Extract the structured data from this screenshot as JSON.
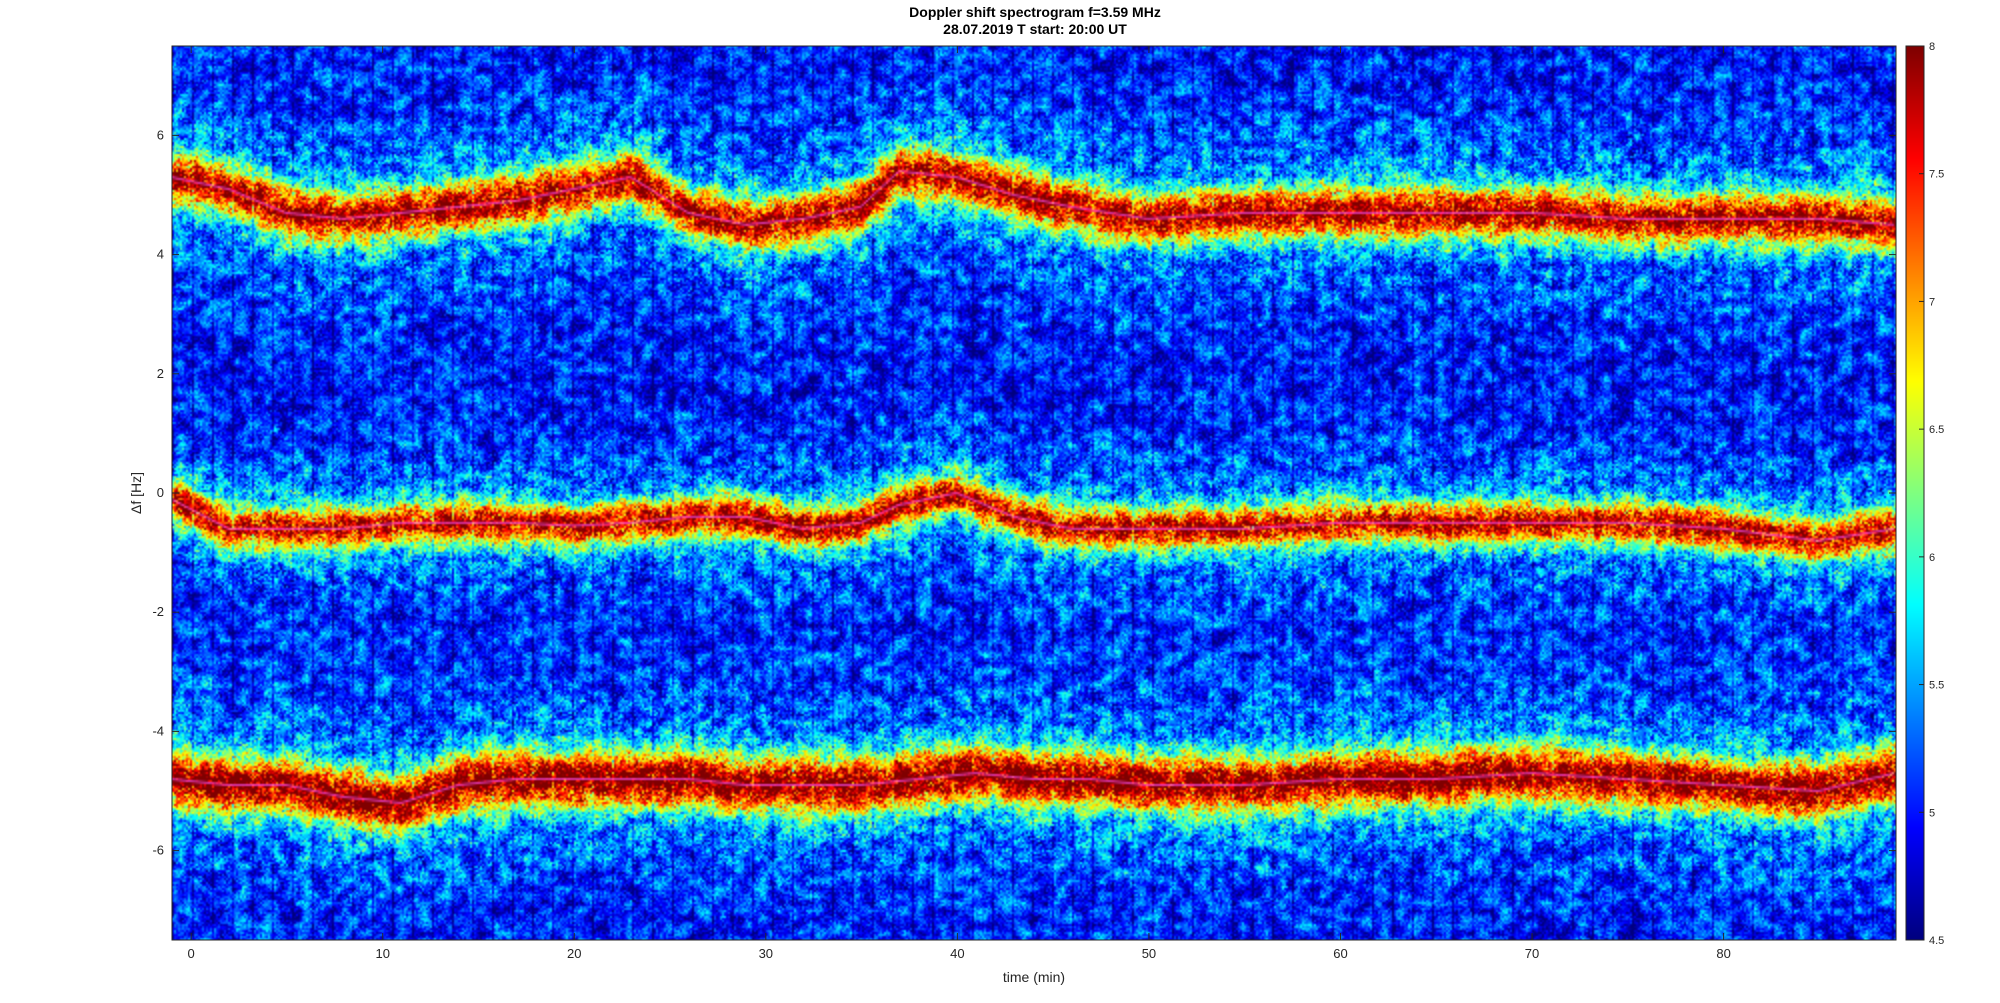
{
  "chart_data": {
    "type": "heatmap",
    "title": "Doppler shift spectrogram f=3.59 MHz",
    "subtitle": "28.07.2019   T start: 20:00 UT",
    "xlabel": "time (min)",
    "ylabel": "Δf [Hz]",
    "xlim": [
      -1,
      89
    ],
    "ylim": [
      -7.5,
      7.5
    ],
    "x_ticks": [
      0,
      10,
      20,
      30,
      40,
      50,
      60,
      70,
      80
    ],
    "y_ticks": [
      -6,
      -4,
      -2,
      0,
      2,
      4,
      6
    ],
    "colorbar": {
      "range": [
        4.5,
        8
      ],
      "ticks": [
        "4.5",
        "5",
        "5.5",
        "6",
        "6.5",
        "7",
        "7.5",
        "8"
      ],
      "colormap": "jet"
    },
    "background_level": 5.0,
    "traces": [
      {
        "points": [
          [
            -1,
            5.3
          ],
          [
            2,
            5.1
          ],
          [
            5,
            4.7
          ],
          [
            8,
            4.6
          ],
          [
            11,
            4.7
          ],
          [
            14,
            4.8
          ],
          [
            17,
            4.9
          ],
          [
            20,
            5.1
          ],
          [
            23,
            5.3
          ],
          [
            26,
            4.7
          ],
          [
            29,
            4.5
          ],
          [
            32,
            4.6
          ],
          [
            35,
            4.8
          ],
          [
            37,
            5.4
          ],
          [
            40,
            5.3
          ],
          [
            43,
            5.0
          ],
          [
            46,
            4.8
          ],
          [
            50,
            4.6
          ],
          [
            55,
            4.7
          ],
          [
            60,
            4.7
          ],
          [
            65,
            4.7
          ],
          [
            70,
            4.7
          ],
          [
            75,
            4.6
          ],
          [
            80,
            4.6
          ],
          [
            85,
            4.6
          ],
          [
            89,
            4.5
          ]
        ],
        "width": 0.55,
        "peak": 7.7
      },
      {
        "points": [
          [
            -1,
            -0.1
          ],
          [
            2,
            -0.6
          ],
          [
            5,
            -0.6
          ],
          [
            8,
            -0.6
          ],
          [
            11,
            -0.5
          ],
          [
            14,
            -0.5
          ],
          [
            17,
            -0.5
          ],
          [
            20,
            -0.55
          ],
          [
            23,
            -0.5
          ],
          [
            26,
            -0.4
          ],
          [
            29,
            -0.4
          ],
          [
            32,
            -0.6
          ],
          [
            35,
            -0.5
          ],
          [
            37,
            -0.2
          ],
          [
            40,
            0.0
          ],
          [
            43,
            -0.4
          ],
          [
            46,
            -0.6
          ],
          [
            50,
            -0.6
          ],
          [
            55,
            -0.6
          ],
          [
            60,
            -0.5
          ],
          [
            65,
            -0.5
          ],
          [
            70,
            -0.5
          ],
          [
            75,
            -0.5
          ],
          [
            80,
            -0.6
          ],
          [
            85,
            -0.8
          ],
          [
            89,
            -0.6
          ]
        ],
        "width": 0.45,
        "peak": 7.6
      },
      {
        "points": [
          [
            -1,
            -4.8
          ],
          [
            2,
            -4.9
          ],
          [
            5,
            -4.9
          ],
          [
            8,
            -5.1
          ],
          [
            11,
            -5.2
          ],
          [
            14,
            -4.9
          ],
          [
            17,
            -4.8
          ],
          [
            20,
            -4.8
          ],
          [
            23,
            -4.8
          ],
          [
            26,
            -4.8
          ],
          [
            29,
            -4.9
          ],
          [
            32,
            -4.9
          ],
          [
            35,
            -4.9
          ],
          [
            38,
            -4.8
          ],
          [
            41,
            -4.7
          ],
          [
            44,
            -4.8
          ],
          [
            47,
            -4.8
          ],
          [
            50,
            -4.9
          ],
          [
            55,
            -4.9
          ],
          [
            60,
            -4.8
          ],
          [
            65,
            -4.8
          ],
          [
            70,
            -4.7
          ],
          [
            75,
            -4.8
          ],
          [
            80,
            -4.9
          ],
          [
            85,
            -5.0
          ],
          [
            89,
            -4.7
          ]
        ],
        "width": 0.6,
        "peak": 7.9
      }
    ]
  }
}
